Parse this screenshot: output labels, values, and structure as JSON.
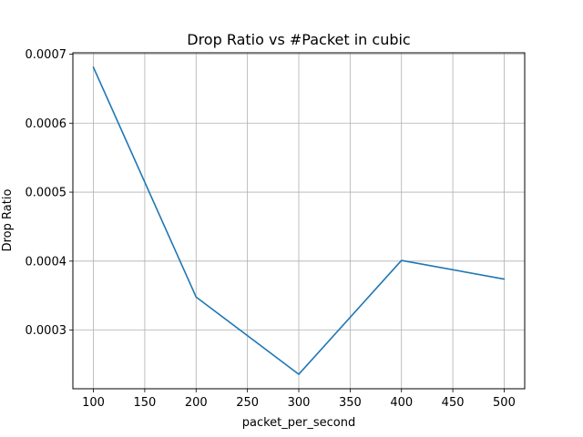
{
  "chart_data": {
    "type": "line",
    "title": "Drop Ratio vs #Packet in cubic",
    "xlabel": "packet_per_second",
    "ylabel": "Drop Ratio",
    "x": [
      100,
      200,
      300,
      400,
      500
    ],
    "series": [
      {
        "name": "",
        "color": "#1f77b4",
        "values": [
          0.000681,
          0.000348,
          0.000236,
          0.000401,
          0.000374
        ]
      }
    ],
    "xlim": [
      80,
      520
    ],
    "ylim": [
      0.000215,
      0.000702
    ],
    "xticks": [
      100,
      150,
      200,
      250,
      300,
      350,
      400,
      450,
      500
    ],
    "yticks": [
      0.0003,
      0.0004,
      0.0005,
      0.0006,
      0.0007
    ],
    "ytick_labels": [
      "0.0003",
      "0.0004",
      "0.0005",
      "0.0006",
      "0.0007"
    ],
    "grid": true
  }
}
